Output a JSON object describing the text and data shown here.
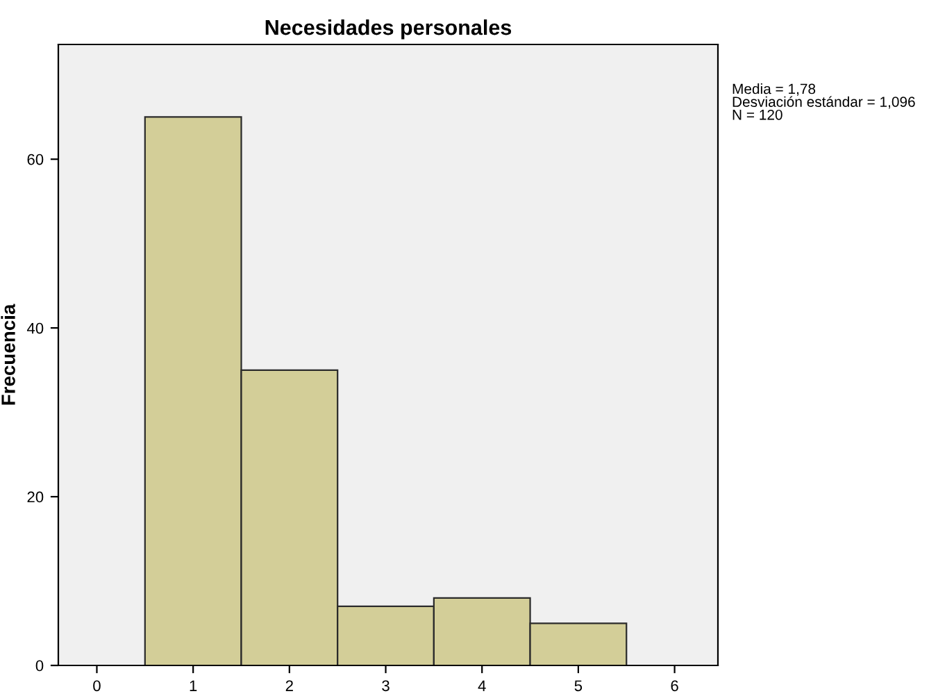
{
  "chart_data": {
    "type": "histogram",
    "title": "Necesidades personales",
    "ylabel": "Frecuencia",
    "bins": [
      0.5,
      1.5,
      2.5,
      3.5,
      4.5,
      5.5
    ],
    "values": [
      65,
      35,
      7,
      8,
      5
    ],
    "color": "#d3ce98",
    "xlim": [
      -0.4,
      6.45
    ],
    "xticks": [
      0,
      1,
      2,
      3,
      4,
      5,
      6
    ],
    "ylim": [
      0,
      73.6
    ],
    "yticks": [
      0,
      20,
      40,
      60
    ],
    "grid": false,
    "annotations": [
      "Media = 1,78\nDesviación estándar = 1,096\nN = 120"
    ]
  }
}
